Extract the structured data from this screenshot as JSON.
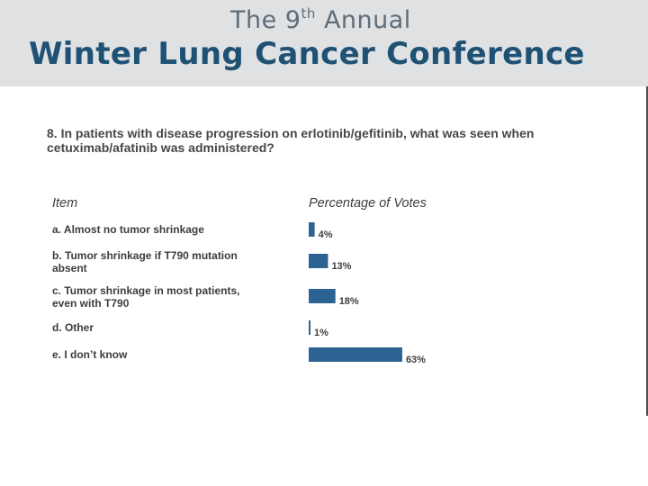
{
  "banner": {
    "line1_prefix": "The 9",
    "line1_sup": "th",
    "line1_suffix": " Annual",
    "line2": "Winter Lung Cancer Conference"
  },
  "question": "8. In patients with disease progression on erlotinib/gefitinib, what was seen when cetuximab/afatinib was administered?",
  "columns": {
    "item": "Item",
    "votes": "Percentage of Votes"
  },
  "colors": {
    "bar": "#2d6393",
    "banner_bg": "#dfe1e3",
    "banner_title": "#1e5174",
    "banner_subtitle": "#5f6d79"
  },
  "chart_data": {
    "type": "bar",
    "orientation": "horizontal",
    "title": "8. In patients with disease progression on erlotinib/gefitinib, what was seen when cetuximab/afatinib was administered?",
    "xlabel": "Percentage of Votes",
    "ylabel": "Item",
    "categories": [
      [
        "a. Almost no tumor shrinkage"
      ],
      [
        "b. Tumor shrinkage if T790 mutation",
        "absent"
      ],
      [
        "c. Tumor shrinkage in most patients,",
        "even with T790"
      ],
      [
        "d. Other"
      ],
      [
        "e. I don’t know"
      ]
    ],
    "values": [
      4,
      13,
      18,
      1,
      63
    ],
    "value_labels": [
      "4%",
      "13%",
      "18%",
      "1%",
      "63%"
    ],
    "unit": "%",
    "xlim": [
      0,
      100
    ],
    "grid": false,
    "legend": "none"
  }
}
